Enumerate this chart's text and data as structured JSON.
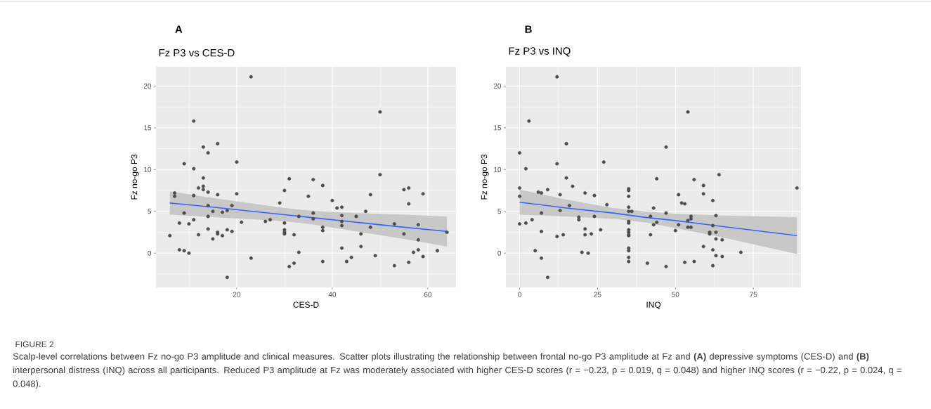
{
  "chart_data": [
    {
      "type": "scatter",
      "title": "Fz P3 vs CES-D",
      "xlabel": "CES-D",
      "ylabel": "Fz no-go P3",
      "annotations": [
        "A"
      ],
      "xlim": [
        3.1,
        65.9
      ],
      "ylim": [
        -4.1,
        22.3
      ],
      "xticks": [
        20,
        40,
        60
      ],
      "yticks": [
        0,
        5,
        10,
        15,
        20
      ],
      "grid": true,
      "marker": "circle",
      "series": [
        {
          "color": "#4d4d4d",
          "x": [
            23,
            50,
            11,
            13,
            14,
            16,
            9,
            11,
            20,
            50,
            13,
            12,
            13,
            13,
            14,
            11,
            7,
            7,
            16,
            20,
            19,
            14,
            15,
            17,
            18,
            9,
            14,
            11,
            8,
            10,
            21,
            14,
            12,
            16,
            16,
            18,
            19,
            17,
            15,
            6,
            8,
            9,
            10,
            18,
            23,
            29,
            26,
            27,
            30,
            31,
            30,
            30,
            30,
            30,
            31,
            32,
            32,
            33,
            33,
            35,
            36,
            36,
            36,
            38,
            38,
            38,
            38,
            40,
            41,
            42,
            42,
            42,
            42,
            42,
            43,
            44,
            45,
            46,
            46,
            47,
            48,
            48,
            49,
            53,
            53,
            55,
            55,
            56,
            56,
            56,
            57,
            58,
            58,
            58,
            59,
            59,
            62,
            64
          ],
          "values": [
            21.1,
            16.9,
            15.8,
            12.7,
            12.0,
            13.1,
            10.7,
            10.1,
            10.9,
            9.4,
            9.0,
            7.8,
            8.0,
            7.6,
            7.3,
            6.9,
            7.2,
            6.8,
            7.0,
            7.1,
            5.7,
            5.7,
            5.0,
            4.9,
            5.1,
            4.8,
            4.4,
            4.0,
            3.6,
            3.5,
            3.7,
            2.9,
            2.2,
            2.5,
            2.3,
            2.8,
            2.6,
            2.1,
            1.7,
            2.1,
            0.4,
            0.3,
            0.0,
            -2.9,
            -0.6,
            6.0,
            3.8,
            4.0,
            7.5,
            8.9,
            3.6,
            2.8,
            2.5,
            2.3,
            -1.6,
            -1.2,
            2.2,
            4.4,
            0.1,
            6.8,
            8.8,
            4.8,
            4.1,
            8.1,
            3.1,
            2.7,
            -1.0,
            6.3,
            5.4,
            5.5,
            4.5,
            3.8,
            3.3,
            0.6,
            -1.0,
            -0.5,
            4.4,
            2.3,
            0.8,
            5.0,
            7.0,
            3.1,
            -0.3,
            3.5,
            -1.5,
            7.6,
            2.3,
            7.8,
            5.9,
            -1.1,
            0.1,
            3.4,
            1.6,
            0.4,
            7.1,
            -0.4,
            0.3,
            2.5
          ]
        },
        {
          "type": "line",
          "color": "#3366ff",
          "marker": "none",
          "x": [
            6,
            15,
            25,
            30,
            35,
            45,
            55,
            64
          ],
          "values": [
            6.0,
            5.5,
            4.9,
            4.6,
            4.3,
            3.7,
            3.1,
            2.6
          ],
          "lower": [
            4.6,
            4.3,
            4.0,
            3.8,
            3.5,
            2.6,
            1.7,
            0.8
          ],
          "upper": [
            7.4,
            6.6,
            5.8,
            5.4,
            5.1,
            4.8,
            4.6,
            4.4
          ]
        }
      ]
    },
    {
      "type": "scatter",
      "title": "Fz P3 vs INQ",
      "xlabel": "INQ",
      "ylabel": "Fz no-go P3",
      "annotations": [
        "B",
        "FIGURE 2",
        "Scalp-level correlations between Fz no-go P3 amplitude and clinical measures. Scatter plots illustrating the relationship between frontal no-go P3 amplitude at Fz and **(A)** depressive symptoms (CES-D) and **(B)** interpersonal distress (INQ) across all participants. Reduced P3 amplitude at Fz was moderately associated with higher CES-D scores (r = −0.23, p = 0.019, q = 0.048) and higher INQ scores (r = −0.22, p = 0.024, q = 0.048)."
      ],
      "xlim": [
        -4.4,
        90.3
      ],
      "ylim": [
        -4.1,
        22.3
      ],
      "xticks": [
        0,
        25,
        50,
        75
      ],
      "yticks": [
        0,
        5,
        10,
        15,
        20
      ],
      "grid": true,
      "marker": "circle",
      "series": [
        {
          "color": "#4d4d4d",
          "x": [
            12,
            54,
            3,
            15,
            47,
            0,
            2,
            12,
            27,
            64,
            0,
            0,
            0,
            2,
            4,
            6,
            7,
            7,
            7,
            7,
            5,
            9,
            9,
            15,
            17,
            13,
            16,
            13,
            12,
            14,
            19,
            19,
            21,
            21,
            21,
            20,
            22,
            23,
            24,
            24,
            26,
            28,
            35,
            35,
            35,
            35,
            35,
            35,
            35,
            35,
            35,
            35,
            35,
            35,
            35,
            35,
            35,
            36,
            41,
            42,
            42,
            43,
            43,
            44,
            44,
            47,
            47,
            50,
            51,
            51,
            52,
            53,
            53,
            54,
            54,
            55,
            55,
            55,
            56,
            56,
            59,
            59,
            59,
            61,
            61,
            62,
            62,
            62,
            62,
            63,
            63,
            63,
            63,
            65,
            65,
            71,
            89
          ],
          "values": [
            21.1,
            16.9,
            15.8,
            13.1,
            12.7,
            12.0,
            10.1,
            10.7,
            10.9,
            9.4,
            7.8,
            6.8,
            3.5,
            3.6,
            4.0,
            7.3,
            7.2,
            4.8,
            2.6,
            -0.6,
            0.3,
            7.6,
            -2.9,
            9.0,
            8.0,
            7.0,
            5.7,
            5.1,
            2.0,
            2.2,
            4.3,
            4.0,
            7.2,
            2.9,
            2.2,
            0.1,
            0.0,
            2.3,
            6.9,
            4.4,
            2.8,
            5.8,
            7.7,
            7.5,
            6.8,
            5.5,
            5.0,
            3.8,
            3.6,
            2.8,
            2.5,
            2.2,
            2.1,
            0.6,
            0.3,
            -0.5,
            -1.0,
            5.0,
            -1.2,
            2.2,
            4.4,
            5.4,
            3.4,
            3.7,
            8.9,
            4.8,
            -1.6,
            2.7,
            7.0,
            3.4,
            6.0,
            5.9,
            -1.1,
            3.9,
            3.1,
            4.4,
            4.1,
            3.1,
            8.8,
            -1.0,
            8.1,
            7.1,
            0.8,
            2.5,
            2.3,
            6.3,
            3.3,
            0.4,
            -1.5,
            4.5,
            2.5,
            1.7,
            -0.3,
            1.6,
            -0.4,
            0.1,
            7.8
          ]
        },
        {
          "type": "line",
          "color": "#3366ff",
          "marker": "none",
          "x": [
            0,
            15,
            30,
            40,
            50,
            65,
            89
          ],
          "values": [
            6.1,
            5.4,
            4.8,
            4.3,
            3.9,
            3.2,
            2.1
          ],
          "lower": [
            4.6,
            4.4,
            4.1,
            3.7,
            3.0,
            1.9,
            -0.1
          ],
          "upper": [
            7.6,
            6.4,
            5.4,
            5.0,
            4.7,
            4.5,
            4.3
          ]
        }
      ]
    }
  ]
}
